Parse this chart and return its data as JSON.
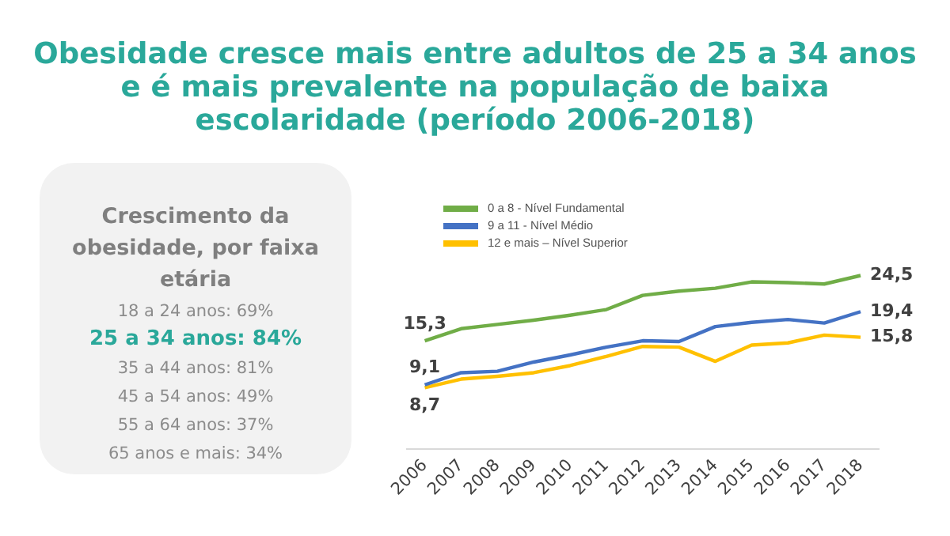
{
  "chart_data": [
    {
      "type": "other",
      "title": "Crescimento da obesidade, por faixa etária",
      "annotations": [
        "18 a 24 anos: 69%",
        "25 a 34 anos: 84%",
        "35 a 44 anos: 81%",
        "45 a 54 anos: 49%",
        "55 a 64 anos: 37%",
        "65 anos e mais: 34%"
      ],
      "colors": [
        "#8c8c8c",
        "#2aa89a",
        "#8c8c8c",
        "#8c8c8c",
        "#8c8c8c",
        "#8c8c8c"
      ]
    },
    {
      "type": "line",
      "title": "Obesidade cresce mais entre adultos de 25 a 34 anos e é mais prevalente na população de baixa escolaridade (período 2006-2018)",
      "categories": [
        "2006",
        "2007",
        "2008",
        "2009",
        "2010",
        "2011",
        "2012",
        "2013",
        "2014",
        "2015",
        "2016",
        "2017",
        "2018"
      ],
      "tick_labels": "x",
      "grid": false,
      "legend": "top left",
      "marker": "none",
      "series": [
        {
          "name": "0 a 8 - Nível Fundamental",
          "color": "#70ad47",
          "values": [
            15.3,
            17.0,
            17.6,
            18.2,
            18.9,
            19.7,
            21.7,
            22.3,
            22.7,
            23.6,
            23.5,
            23.3,
            24.5
          ],
          "value_labels": [
            "15,3",
            null,
            null,
            null,
            null,
            null,
            null,
            null,
            null,
            null,
            null,
            null,
            "24,5"
          ]
        },
        {
          "name": "9 a 11 - Nível Médio",
          "color": "#4472c4",
          "values": [
            9.1,
            10.8,
            11.0,
            12.3,
            13.3,
            14.4,
            15.3,
            15.2,
            17.3,
            17.9,
            18.3,
            17.8,
            19.4
          ],
          "value_labels": [
            "9,1",
            null,
            null,
            null,
            null,
            null,
            null,
            null,
            null,
            null,
            null,
            null,
            "19,4"
          ]
        },
        {
          "name": "12 e mais – Nível Superior",
          "color": "#ffc000",
          "values": [
            8.7,
            9.9,
            10.3,
            10.8,
            11.8,
            13.1,
            14.5,
            14.4,
            12.4,
            14.7,
            15.0,
            16.1,
            15.8
          ],
          "value_labels": [
            "8,7",
            null,
            null,
            null,
            null,
            null,
            null,
            null,
            null,
            null,
            null,
            null,
            "15,8"
          ]
        }
      ]
    }
  ]
}
